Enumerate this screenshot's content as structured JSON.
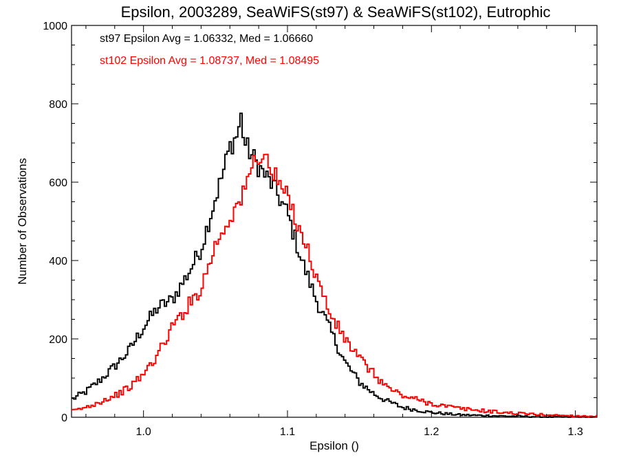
{
  "chart_data": {
    "type": "histogram",
    "title": "Epsilon, 2003289, SeaWiFS(st97) & SeaWiFS(st102), Eutrophic",
    "xlabel": "Epsilon ()",
    "ylabel": "Number of Observations",
    "xlim": [
      0.95,
      1.315
    ],
    "ylim": [
      0,
      1000
    ],
    "x_ticks": [
      1.0,
      1.1,
      1.2,
      1.3
    ],
    "x_tick_labels": [
      "1.0",
      "1.1",
      "1.2",
      "1.3"
    ],
    "y_ticks": [
      0,
      200,
      400,
      600,
      800,
      1000
    ],
    "y_tick_labels": [
      "0",
      "200",
      "400",
      "600",
      "800",
      "1000"
    ],
    "grid": false,
    "annotations": [
      {
        "text": "st97 Epsilon Avg = 1.06332, Med = 1.06660",
        "color": "#000000"
      },
      {
        "text": "st102 Epsilon Avg = 1.08737, Med = 1.08495",
        "color": "#ff0000"
      }
    ],
    "series": [
      {
        "color": "#000000",
        "x": [
          0.95,
          0.96,
          0.97,
          0.98,
          0.99,
          1.0,
          1.01,
          1.02,
          1.03,
          1.04,
          1.05,
          1.055,
          1.06,
          1.065,
          1.068,
          1.07,
          1.075,
          1.08,
          1.09,
          1.1,
          1.11,
          1.12,
          1.13,
          1.14,
          1.15,
          1.16,
          1.17,
          1.18,
          1.2,
          1.22,
          1.25,
          1.28,
          1.315
        ],
        "values": [
          45,
          65,
          95,
          130,
          170,
          230,
          280,
          300,
          360,
          430,
          560,
          620,
          690,
          720,
          770,
          700,
          670,
          640,
          590,
          520,
          400,
          300,
          220,
          140,
          90,
          60,
          40,
          25,
          12,
          6,
          3,
          1,
          0
        ]
      },
      {
        "color": "#ff0000",
        "x": [
          0.95,
          0.96,
          0.97,
          0.98,
          0.99,
          1.0,
          1.01,
          1.02,
          1.03,
          1.04,
          1.05,
          1.06,
          1.065,
          1.07,
          1.075,
          1.08,
          1.085,
          1.09,
          1.1,
          1.11,
          1.12,
          1.13,
          1.14,
          1.15,
          1.16,
          1.17,
          1.18,
          1.19,
          1.2,
          1.22,
          1.25,
          1.28,
          1.315
        ],
        "values": [
          15,
          25,
          40,
          55,
          75,
          110,
          160,
          230,
          280,
          330,
          440,
          510,
          540,
          570,
          640,
          670,
          660,
          620,
          560,
          470,
          360,
          260,
          200,
          150,
          110,
          75,
          55,
          45,
          35,
          22,
          12,
          6,
          2
        ]
      }
    ]
  }
}
